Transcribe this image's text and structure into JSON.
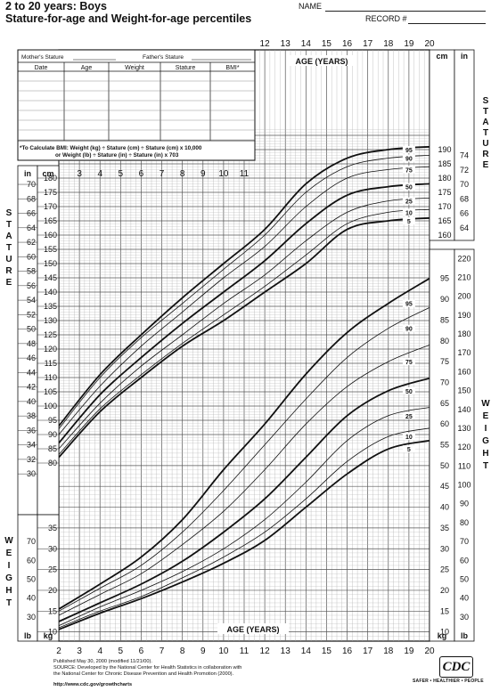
{
  "header": {
    "title": "2 to 20 years: Boys",
    "subtitle": "Stature-for-age and Weight-for-age percentiles",
    "name_label": "NAME",
    "record_label": "RECORD #"
  },
  "record_table": {
    "mother_label": "Mother's Stature",
    "father_label": "Father's Stature",
    "columns": [
      "Date",
      "Age",
      "Weight",
      "Stature",
      "BMI*"
    ],
    "bmi_note_line1": "*To Calculate BMI: Weight (kg) ÷ Stature (cm) ÷ Stature (cm) x 10,000",
    "bmi_note_line2": "or Weight (lb) ÷ Stature (in) ÷ Stature (in) x 703"
  },
  "labels": {
    "age_years": "AGE (YEARS)",
    "stature_vertical": "STATURE",
    "weight_vertical": "WEIGHT",
    "cm": "cm",
    "in": "in",
    "kg": "kg",
    "lb": "lb"
  },
  "footer": {
    "line1": "Published May 30, 2000 (modified 11/21/00).",
    "line2": "SOURCE: Developed by the National Center for Health Statistics in collaboration with",
    "line3": "the National Center for Chronic Disease Prevention and Health Promotion (2000).",
    "line4": "http://www.cdc.gov/growthcharts",
    "logo": "CDC",
    "tagline": "SAFER • HEALTHIER • PEOPLE"
  },
  "chart_data": [
    {
      "type": "line",
      "title": "Stature-for-age percentiles",
      "xlabel": "AGE (YEARS)",
      "ylabel": "STATURE",
      "x_ticks": [
        2,
        3,
        4,
        5,
        6,
        7,
        8,
        9,
        10,
        11,
        12,
        13,
        14,
        15,
        16,
        17,
        18,
        19,
        20
      ],
      "x": [
        2,
        4,
        6,
        8,
        10,
        12,
        14,
        16,
        18,
        20
      ],
      "xlim": [
        2,
        20
      ],
      "ylim_cm": [
        77,
        197
      ],
      "y_ticks_cm": [
        80,
        85,
        90,
        95,
        100,
        105,
        110,
        115,
        120,
        125,
        130,
        135,
        140,
        145,
        150,
        155,
        160,
        165,
        170,
        175,
        180,
        185,
        190
      ],
      "y_ticks_in": [
        30,
        32,
        34,
        36,
        38,
        40,
        42,
        44,
        46,
        48,
        50,
        52,
        54,
        56,
        58,
        60,
        62,
        64,
        66,
        68,
        70,
        72,
        74
      ],
      "series": [
        {
          "name": "95",
          "values": [
            93,
            111,
            125,
            138,
            150,
            162,
            178,
            187,
            190,
            191
          ]
        },
        {
          "name": "90",
          "values": [
            92,
            110,
            124,
            136,
            148,
            160,
            175,
            184,
            187,
            188
          ]
        },
        {
          "name": "75",
          "values": [
            90,
            107,
            121,
            133,
            145,
            156,
            170,
            180,
            183,
            184
          ]
        },
        {
          "name": "50",
          "values": [
            87,
            104,
            117,
            129,
            140,
            151,
            164,
            174,
            177,
            178
          ]
        },
        {
          "name": "25",
          "values": [
            85,
            101,
            114,
            125,
            136,
            146,
            158,
            168,
            172,
            173
          ]
        },
        {
          "name": "10",
          "values": [
            83,
            99,
            111,
            122,
            132,
            142,
            153,
            164,
            168,
            169
          ]
        },
        {
          "name": "5",
          "values": [
            82,
            98,
            110,
            121,
            130,
            140,
            150,
            162,
            165,
            166
          ]
        }
      ]
    },
    {
      "type": "line",
      "title": "Weight-for-age percentiles",
      "xlabel": "AGE (YEARS)",
      "ylabel": "WEIGHT",
      "x": [
        2,
        4,
        6,
        8,
        10,
        12,
        14,
        16,
        18,
        20
      ],
      "xlim": [
        2,
        20
      ],
      "ylim_kg": [
        8,
        105
      ],
      "y_ticks_kg": [
        10,
        15,
        20,
        25,
        30,
        35,
        40,
        45,
        50,
        55,
        60,
        65,
        70,
        75,
        80,
        85,
        90,
        95,
        100,
        105
      ],
      "y_ticks_lb": [
        30,
        40,
        50,
        60,
        70,
        80,
        90,
        100,
        110,
        120,
        130,
        140,
        150,
        160,
        170,
        180,
        190,
        200,
        210,
        220,
        230
      ],
      "series": [
        {
          "name": "95",
          "values": [
            15.5,
            21.5,
            28,
            37,
            49,
            60,
            72,
            82,
            89,
            95
          ]
        },
        {
          "name": "90",
          "values": [
            15,
            20.5,
            26,
            34,
            44,
            55,
            66,
            76,
            83,
            88
          ]
        },
        {
          "name": "75",
          "values": [
            14,
            19,
            24,
            31,
            39,
            49,
            60,
            69,
            75,
            79
          ]
        },
        {
          "name": "50",
          "values": [
            12.5,
            17,
            21.5,
            27,
            34,
            42,
            52,
            62,
            68,
            71
          ]
        },
        {
          "name": "25",
          "values": [
            11.5,
            16,
            20,
            24.5,
            30,
            37,
            46,
            56,
            62,
            64
          ]
        },
        {
          "name": "10",
          "values": [
            11,
            15,
            18.5,
            23,
            28,
            34,
            42,
            51,
            57,
            59
          ]
        },
        {
          "name": "5",
          "values": [
            10.6,
            14.5,
            18,
            22,
            26.5,
            32,
            40,
            48,
            54,
            56
          ]
        }
      ]
    }
  ]
}
